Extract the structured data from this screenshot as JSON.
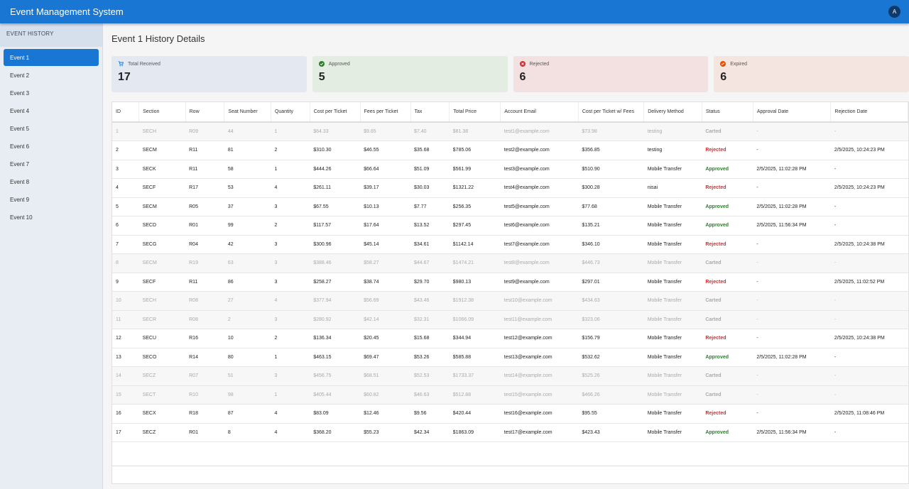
{
  "app": {
    "title": "Event Management System",
    "avatar_letter": "A"
  },
  "sidebar": {
    "header": "EVENT HISTORY",
    "items": [
      "Event 1",
      "Event 2",
      "Event 3",
      "Event 4",
      "Event 5",
      "Event 6",
      "Event 7",
      "Event 8",
      "Event 9",
      "Event 10"
    ],
    "active_index": 0
  },
  "page_title": "Event 1 History Details",
  "summary": [
    {
      "label": "Total Received",
      "value": "17",
      "icon": "cart-icon",
      "color": "#1976d2"
    },
    {
      "label": "Approved",
      "value": "5",
      "icon": "check-circle-icon",
      "color": "#2e7d32"
    },
    {
      "label": "Rejected",
      "value": "6",
      "icon": "cancel-circle-icon",
      "color": "#d32f2f"
    },
    {
      "label": "Expired",
      "value": "6",
      "icon": "expired-icon",
      "color": "#e65100"
    }
  ],
  "table": {
    "columns": [
      "ID",
      "Section",
      "Row",
      "Seat Number",
      "Quantity",
      "Cost per Ticket",
      "Fees per Ticket",
      "Tax",
      "Total Price",
      "Account Email",
      "Cost per Ticket w/ Fees",
      "Delivery Method",
      "Status",
      "Approval Date",
      "Rejection Date"
    ],
    "rows": [
      [
        "1",
        "SECH",
        "R09",
        "44",
        "1",
        "$64.33",
        "$9.65",
        "$7.40",
        "$81.38",
        "test1@example.com",
        "$73.98",
        "testing",
        "Carted",
        "-",
        "-"
      ],
      [
        "2",
        "SECM",
        "R11",
        "81",
        "2",
        "$310.30",
        "$46.55",
        "$35.68",
        "$785.06",
        "test2@example.com",
        "$356.85",
        "testing",
        "Rejected",
        "-",
        "2/5/2025, 10:24:23 PM"
      ],
      [
        "3",
        "SECK",
        "R11",
        "58",
        "1",
        "$444.26",
        "$66.64",
        "$51.09",
        "$561.99",
        "test3@example.com",
        "$510.90",
        "Mobile Transfer",
        "Approved",
        "2/5/2025, 11:02:28 PM",
        "-"
      ],
      [
        "4",
        "SECF",
        "R17",
        "53",
        "4",
        "$261.11",
        "$39.17",
        "$30.03",
        "$1321.22",
        "test4@example.com",
        "$300.28",
        "nisai",
        "Rejected",
        "-",
        "2/5/2025, 10:24:23 PM"
      ],
      [
        "5",
        "SECM",
        "R05",
        "37",
        "3",
        "$67.55",
        "$10.13",
        "$7.77",
        "$256.35",
        "test5@example.com",
        "$77.68",
        "Mobile Transfer",
        "Approved",
        "2/5/2025, 11:02:28 PM",
        "-"
      ],
      [
        "6",
        "SECD",
        "R01",
        "99",
        "2",
        "$117.57",
        "$17.64",
        "$13.52",
        "$297.45",
        "test6@example.com",
        "$135.21",
        "Mobile Transfer",
        "Approved",
        "2/5/2025, 11:56:34 PM",
        "-"
      ],
      [
        "7",
        "SECG",
        "R04",
        "42",
        "3",
        "$300.96",
        "$45.14",
        "$34.61",
        "$1142.14",
        "test7@example.com",
        "$346.10",
        "Mobile Transfer",
        "Rejected",
        "-",
        "2/5/2025, 10:24:38 PM"
      ],
      [
        "8",
        "SECM",
        "R19",
        "63",
        "3",
        "$388.46",
        "$58.27",
        "$44.67",
        "$1474.21",
        "test8@example.com",
        "$446.73",
        "Mobile Transfer",
        "Carted",
        "-",
        "-"
      ],
      [
        "9",
        "SECF",
        "R11",
        "86",
        "3",
        "$258.27",
        "$38.74",
        "$29.70",
        "$980.13",
        "test9@example.com",
        "$297.01",
        "Mobile Transfer",
        "Rejected",
        "-",
        "2/5/2025, 11:02:52 PM"
      ],
      [
        "10",
        "SECH",
        "R08",
        "27",
        "4",
        "$377.94",
        "$56.69",
        "$43.46",
        "$1912.38",
        "test10@example.com",
        "$434.63",
        "Mobile Transfer",
        "Carted",
        "-",
        "-"
      ],
      [
        "11",
        "SECR",
        "R08",
        "2",
        "3",
        "$280.92",
        "$42.14",
        "$32.31",
        "$1066.09",
        "test11@example.com",
        "$323.06",
        "Mobile Transfer",
        "Carted",
        "-",
        "-"
      ],
      [
        "12",
        "SECU",
        "R16",
        "10",
        "2",
        "$136.34",
        "$20.45",
        "$15.68",
        "$344.94",
        "test12@example.com",
        "$156.79",
        "Mobile Transfer",
        "Rejected",
        "-",
        "2/5/2025, 10:24:38 PM"
      ],
      [
        "13",
        "SECO",
        "R14",
        "80",
        "1",
        "$463.15",
        "$69.47",
        "$53.26",
        "$585.88",
        "test13@example.com",
        "$532.62",
        "Mobile Transfer",
        "Approved",
        "2/5/2025, 11:02:28 PM",
        "-"
      ],
      [
        "14",
        "SECZ",
        "R07",
        "51",
        "3",
        "$456.75",
        "$68.51",
        "$52.53",
        "$1733.37",
        "test14@example.com",
        "$525.26",
        "Mobile Transfer",
        "Carted",
        "-",
        "-"
      ],
      [
        "15",
        "SECT",
        "R10",
        "98",
        "1",
        "$405.44",
        "$60.82",
        "$46.63",
        "$512.88",
        "test15@example.com",
        "$466.26",
        "Mobile Transfer",
        "Carted",
        "-",
        "-"
      ],
      [
        "16",
        "SECX",
        "R18",
        "87",
        "4",
        "$83.09",
        "$12.46",
        "$9.56",
        "$420.44",
        "test16@example.com",
        "$95.55",
        "Mobile Transfer",
        "Rejected",
        "-",
        "2/5/2025, 11:08:46 PM"
      ],
      [
        "17",
        "SECZ",
        "R01",
        "8",
        "4",
        "$368.20",
        "$55.23",
        "$42.34",
        "$1863.09",
        "test17@example.com",
        "$423.43",
        "Mobile Transfer",
        "Approved",
        "2/5/2025, 11:56:34 PM",
        "-"
      ]
    ]
  }
}
